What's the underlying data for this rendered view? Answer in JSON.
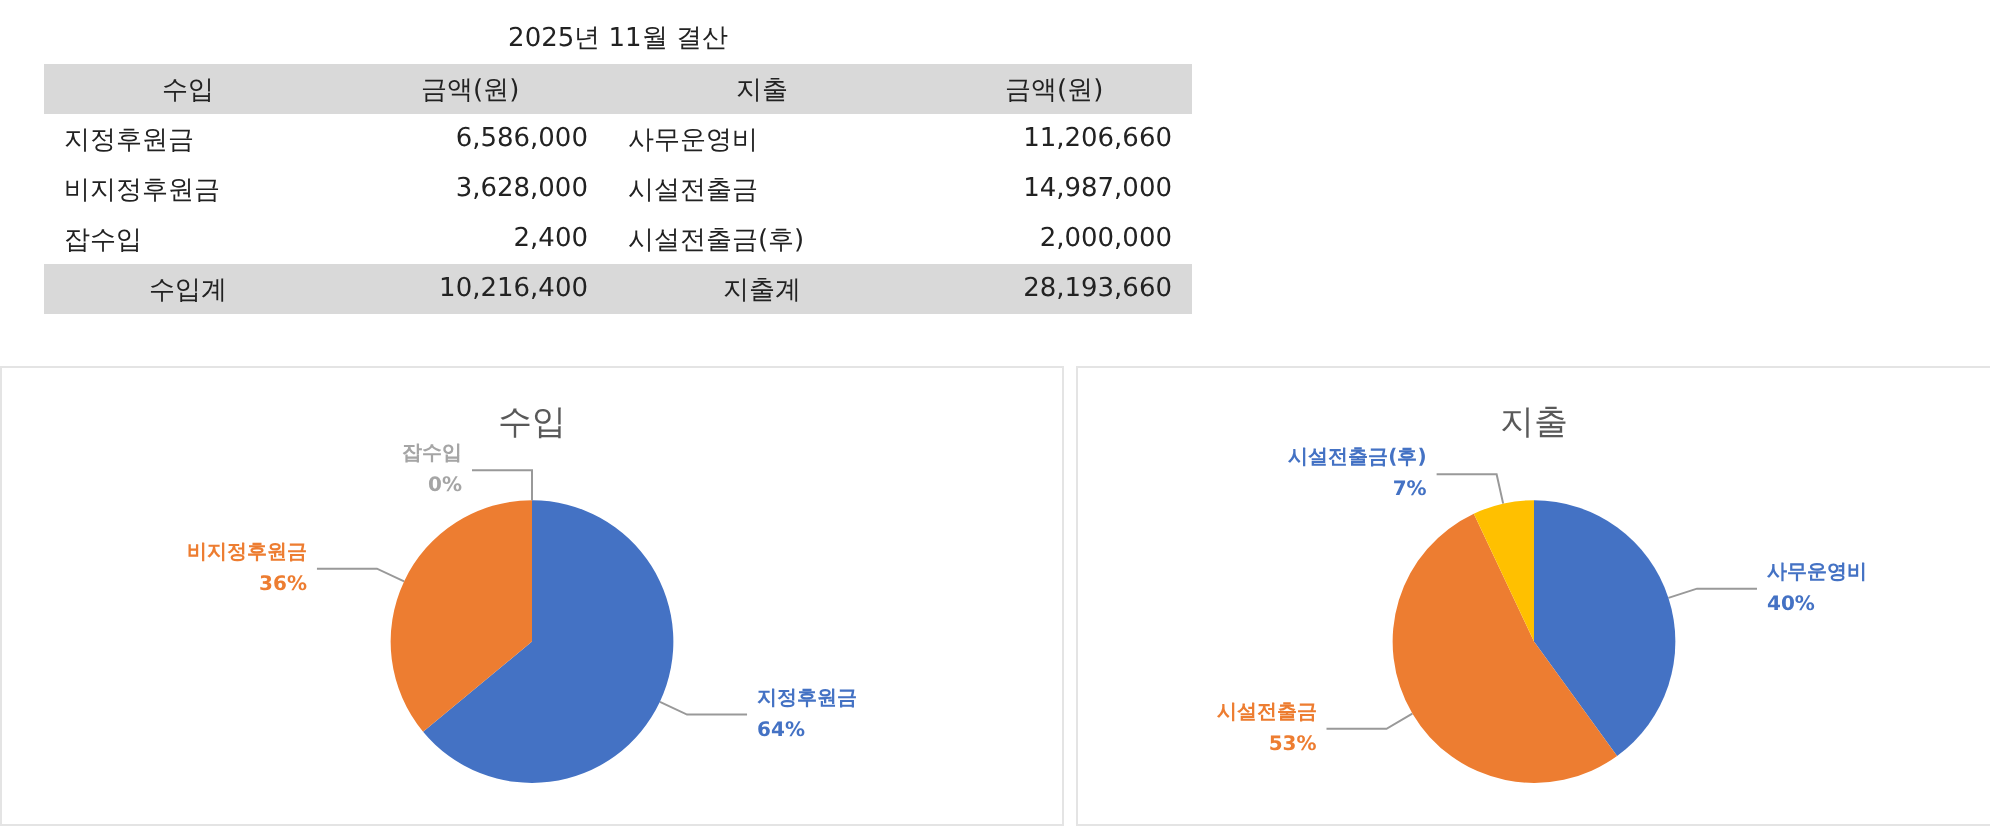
{
  "chart_data": [
    {
      "type": "other",
      "title": "2025년 11월 결산",
      "annotations": [
        "수입",
        "금액(원)",
        "지출",
        "금액(원)",
        "지정후원금",
        "6,586,000",
        "사무운영비",
        "11,206,660",
        "비지정후원금",
        "3,628,000",
        "시설전출금",
        "14,987,000",
        "잡수입",
        "2,400",
        "시설전출금(후)",
        "2,000,000",
        "수입계",
        "10,216,400",
        "지출계",
        "28,193,660"
      ]
    },
    {
      "type": "pie",
      "title": "수입",
      "categories": [
        "지정후원금",
        "비지정후원금",
        "잡수입"
      ],
      "values": [
        64,
        36,
        0
      ],
      "value_labels": [
        "64%",
        "36%",
        "0%"
      ],
      "colors": [
        "#4472c4",
        "#ed7d31",
        "#a5a5a5"
      ],
      "legend": false
    },
    {
      "type": "pie",
      "title": "지출",
      "categories": [
        "사무운영비",
        "시설전출금",
        "시설전출금(후)"
      ],
      "values": [
        40,
        53,
        7
      ],
      "value_labels": [
        "40%",
        "53%",
        "7%"
      ],
      "colors": [
        "#4472c4",
        "#ed7d31",
        "#ffc000"
      ],
      "legend": false
    }
  ]
}
